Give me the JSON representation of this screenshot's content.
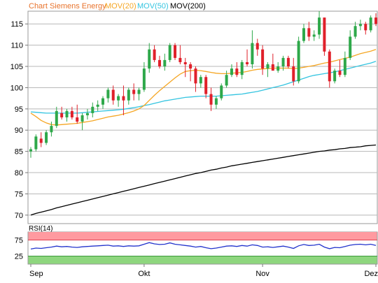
{
  "legend": {
    "title": "Chart Siemens Energy",
    "items": [
      {
        "label": "MOV(20)",
        "color": "#f5a623"
      },
      {
        "label": "MOV(50)",
        "color": "#33c4e0"
      },
      {
        "label": "MOV(200)",
        "color": "#000000"
      }
    ],
    "title_color": "#e8732c"
  },
  "rsi_label": "RSI(14)",
  "colors": {
    "up": "#2ea84a",
    "down": "#e0202a",
    "grid": "#b8b8b8",
    "rsi_line": "#2233cc",
    "rsi_high_band": "#ff9aa0",
    "rsi_low_band": "#8ed67e"
  },
  "chart_data": [
    {
      "type": "candlestick",
      "title": "Chart Siemens Energy",
      "ylim": [
        68,
        118
      ],
      "yticks": [
        70,
        75,
        80,
        85,
        90,
        95,
        100,
        105,
        110,
        115
      ],
      "grid": true,
      "legend_placement": "top-left",
      "x_labels": [
        {
          "label": "Sep",
          "index": 0
        },
        {
          "label": "Okt",
          "index": 22
        },
        {
          "label": "Nov",
          "index": 45
        },
        {
          "label": "Dez",
          "index": 67
        }
      ],
      "candles": [
        [
          85.0,
          86.0,
          83.5,
          85.5
        ],
        [
          85.5,
          89.0,
          85.0,
          88.5
        ],
        [
          88.0,
          89.5,
          86.0,
          87.0
        ],
        [
          87.0,
          90.0,
          86.5,
          89.5
        ],
        [
          89.5,
          92.0,
          88.5,
          91.0
        ],
        [
          91.0,
          95.5,
          90.5,
          94.5
        ],
        [
          94.0,
          95.5,
          92.5,
          93.0
        ],
        [
          93.0,
          95.0,
          92.0,
          94.5
        ],
        [
          94.5,
          95.5,
          92.5,
          93.0
        ],
        [
          93.0,
          96.0,
          91.5,
          92.0
        ],
        [
          92.0,
          94.0,
          90.0,
          93.5
        ],
        [
          93.5,
          95.0,
          92.5,
          94.0
        ],
        [
          94.0,
          96.5,
          93.0,
          95.5
        ],
        [
          95.5,
          97.0,
          94.5,
          96.0
        ],
        [
          96.0,
          98.0,
          95.0,
          97.5
        ],
        [
          97.5,
          100.0,
          96.5,
          99.5
        ],
        [
          99.5,
          100.5,
          96.0,
          97.0
        ],
        [
          97.0,
          98.5,
          95.5,
          98.0
        ],
        [
          98.0,
          100.5,
          93.5,
          97.0
        ],
        [
          97.0,
          100.0,
          96.0,
          99.5
        ],
        [
          99.5,
          101.0,
          97.0,
          98.5
        ],
        [
          98.5,
          100.0,
          97.0,
          99.5
        ],
        [
          99.5,
          106.0,
          99.0,
          104.5
        ],
        [
          104.5,
          110.5,
          103.5,
          109.0
        ],
        [
          109.0,
          110.0,
          106.0,
          106.5
        ],
        [
          106.5,
          107.5,
          104.5,
          105.0
        ],
        [
          105.0,
          108.0,
          104.0,
          106.5
        ],
        [
          106.5,
          110.5,
          106.0,
          110.0
        ],
        [
          110.0,
          110.5,
          106.5,
          107.0
        ],
        [
          107.0,
          110.0,
          105.5,
          106.0
        ],
        [
          106.0,
          107.0,
          102.5,
          105.5
        ],
        [
          105.5,
          106.0,
          101.5,
          104.5
        ],
        [
          104.5,
          105.0,
          99.0,
          101.0
        ],
        [
          101.0,
          103.0,
          100.0,
          102.5
        ],
        [
          102.5,
          103.0,
          97.5,
          98.5
        ],
        [
          98.5,
          100.0,
          94.5,
          96.0
        ],
        [
          96.0,
          98.0,
          95.0,
          97.5
        ],
        [
          97.5,
          101.0,
          97.0,
          100.5
        ],
        [
          100.5,
          104.0,
          100.0,
          103.0
        ],
        [
          103.0,
          105.5,
          102.5,
          104.5
        ],
        [
          104.5,
          106.0,
          102.5,
          103.0
        ],
        [
          103.0,
          106.5,
          102.0,
          106.0
        ],
        [
          106.0,
          109.0,
          105.0,
          105.5
        ],
        [
          105.5,
          113.5,
          104.5,
          110.5
        ],
        [
          110.5,
          111.5,
          107.5,
          109.0
        ],
        [
          109.0,
          110.0,
          103.0,
          104.5
        ],
        [
          104.5,
          106.0,
          102.5,
          105.5
        ],
        [
          105.5,
          108.0,
          104.5,
          104.0
        ],
        [
          104.0,
          106.0,
          103.5,
          105.0
        ],
        [
          105.0,
          107.5,
          104.0,
          107.0
        ],
        [
          107.0,
          107.5,
          104.5,
          105.0
        ],
        [
          105.0,
          107.0,
          100.5,
          101.5
        ],
        [
          101.5,
          112.0,
          101.0,
          111.0
        ],
        [
          111.0,
          115.0,
          110.5,
          114.0
        ],
        [
          114.0,
          115.5,
          111.0,
          112.0
        ],
        [
          112.0,
          113.5,
          111.0,
          112.5
        ],
        [
          112.5,
          118.0,
          111.5,
          116.5
        ],
        [
          116.5,
          116.5,
          107.5,
          108.5
        ],
        [
          108.5,
          109.0,
          100.0,
          101.5
        ],
        [
          101.5,
          104.5,
          101.0,
          104.0
        ],
        [
          104.0,
          106.5,
          102.5,
          103.0
        ],
        [
          103.0,
          108.5,
          102.5,
          107.0
        ],
        [
          107.0,
          113.5,
          106.5,
          112.0
        ],
        [
          112.0,
          115.5,
          111.5,
          114.5
        ],
        [
          114.5,
          116.0,
          113.5,
          115.0
        ],
        [
          115.0,
          115.5,
          112.5,
          113.5
        ],
        [
          113.5,
          117.0,
          113.0,
          116.5
        ],
        [
          116.5,
          117.5,
          114.5,
          115.0
        ]
      ],
      "candle_fields": [
        "open",
        "high",
        "low",
        "close"
      ],
      "series": [
        {
          "name": "MOV(20)",
          "values": [
            94.0,
            93.2,
            92.3,
            91.7,
            91.3,
            91.2,
            91.3,
            91.4,
            91.5,
            91.6,
            91.8,
            92.0,
            92.2,
            92.5,
            92.8,
            93.1,
            93.3,
            93.5,
            93.8,
            94.1,
            94.5,
            95.0,
            95.8,
            97.0,
            98.2,
            99.3,
            100.3,
            101.3,
            102.3,
            103.2,
            103.8,
            104.0,
            104.1,
            104.0,
            103.8,
            103.6,
            103.4,
            103.3,
            103.3,
            103.4,
            103.5,
            103.6,
            103.8,
            104.1,
            104.3,
            104.4,
            104.5,
            104.6,
            104.6,
            104.6,
            104.6,
            104.5,
            104.6,
            104.8,
            105.0,
            105.2,
            105.5,
            105.8,
            106.0,
            106.3,
            106.6,
            106.9,
            107.2,
            107.6,
            108.0,
            108.3,
            108.6,
            109.0
          ]
        },
        {
          "name": "MOV(50)",
          "values": [
            94.3,
            94.2,
            94.1,
            94.0,
            94.0,
            94.0,
            94.0,
            94.0,
            94.0,
            94.0,
            94.1,
            94.2,
            94.3,
            94.4,
            94.5,
            94.6,
            94.7,
            94.8,
            94.9,
            95.1,
            95.3,
            95.5,
            95.8,
            96.0,
            96.3,
            96.6,
            96.9,
            97.1,
            97.3,
            97.5,
            97.7,
            97.8,
            97.9,
            98.0,
            98.0,
            98.0,
            98.0,
            98.1,
            98.2,
            98.3,
            98.4,
            98.5,
            98.7,
            98.9,
            99.1,
            99.4,
            99.7,
            100.0,
            100.3,
            100.6,
            101.0,
            101.4,
            101.8,
            102.2,
            102.6,
            102.9,
            103.1,
            103.3,
            103.5,
            103.7,
            104.0,
            104.3,
            104.6,
            104.9,
            105.2,
            105.5,
            105.8,
            106.2
          ]
        },
        {
          "name": "MOV(200)",
          "values": [
            70.0,
            70.4,
            70.7,
            71.0,
            71.3,
            71.7,
            72.0,
            72.3,
            72.6,
            72.9,
            73.2,
            73.5,
            73.8,
            74.1,
            74.4,
            74.7,
            75.0,
            75.3,
            75.6,
            75.9,
            76.2,
            76.5,
            76.8,
            77.1,
            77.4,
            77.7,
            78.0,
            78.3,
            78.6,
            78.9,
            79.2,
            79.5,
            79.8,
            80.0,
            80.3,
            80.6,
            80.8,
            81.1,
            81.3,
            81.6,
            81.8,
            82.0,
            82.2,
            82.4,
            82.6,
            82.8,
            83.0,
            83.2,
            83.4,
            83.6,
            83.8,
            84.0,
            84.2,
            84.4,
            84.6,
            84.8,
            85.0,
            85.1,
            85.3,
            85.4,
            85.6,
            85.7,
            85.9,
            86.0,
            86.1,
            86.3,
            86.4,
            86.5
          ]
        }
      ]
    },
    {
      "type": "line",
      "title": "RSI(14)",
      "ylim": [
        0,
        100
      ],
      "yticks": [
        25,
        75
      ],
      "bands": [
        {
          "from": 75,
          "to": 100,
          "color": "#ff9aa0"
        },
        {
          "from": 0,
          "to": 25,
          "color": "#8ed67e"
        }
      ],
      "series": [
        {
          "name": "RSI(14)",
          "values": [
            47,
            50,
            49,
            51,
            53,
            56,
            54,
            55,
            53,
            52,
            54,
            55,
            56,
            57,
            58,
            59,
            56,
            57,
            55,
            57,
            56,
            57,
            62,
            67,
            63,
            61,
            62,
            66,
            62,
            60,
            58,
            56,
            53,
            55,
            51,
            48,
            50,
            53,
            56,
            57,
            55,
            58,
            56,
            60,
            58,
            53,
            54,
            52,
            54,
            56,
            53,
            49,
            57,
            61,
            58,
            59,
            62,
            53,
            48,
            52,
            51,
            55,
            59,
            61,
            62,
            60,
            62,
            58
          ]
        }
      ]
    }
  ]
}
